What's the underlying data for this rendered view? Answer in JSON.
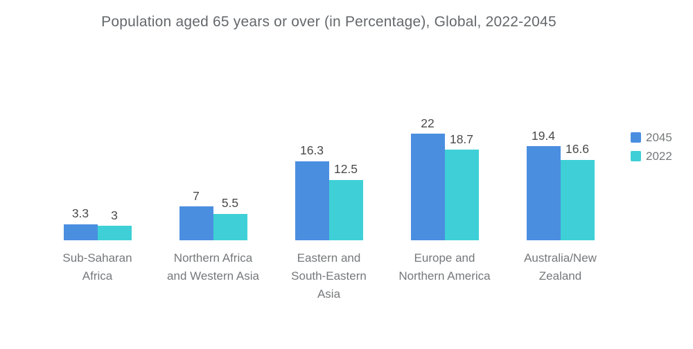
{
  "title": "Population aged 65 years or over (in Percentage), Global, 2022-2045",
  "colors": {
    "series_2045": "#4a8ee0",
    "series_2022": "#3ed0d6",
    "title_text": "#64686b",
    "value_text": "#4a4a4a",
    "category_text": "#75787a",
    "background": "#ffffff"
  },
  "legend": {
    "position": "right",
    "items": [
      {
        "label": "2045",
        "color": "#4a8ee0"
      },
      {
        "label": "2022",
        "color": "#3ed0d6"
      }
    ]
  },
  "chart_data": {
    "type": "bar",
    "title": "Population aged 65 years or over (in Percentage), Global, 2022-2045",
    "categories": [
      "Sub-Saharan Africa",
      "Northern Africa and Western Asia",
      "Eastern and South-Eastern Asia",
      "Europe and Northern America",
      "Australia/New Zealand"
    ],
    "series": [
      {
        "name": "2045",
        "color": "#4a8ee0",
        "values": [
          3.3,
          7,
          16.3,
          22,
          19.4
        ]
      },
      {
        "name": "2022",
        "color": "#3ed0d6",
        "values": [
          3,
          5.5,
          12.5,
          18.7,
          16.6
        ]
      }
    ],
    "xlabel": "",
    "ylabel": "",
    "ylim": [
      0,
      25
    ],
    "grid": false,
    "value_labels_shown": true,
    "legend_position": "right"
  }
}
